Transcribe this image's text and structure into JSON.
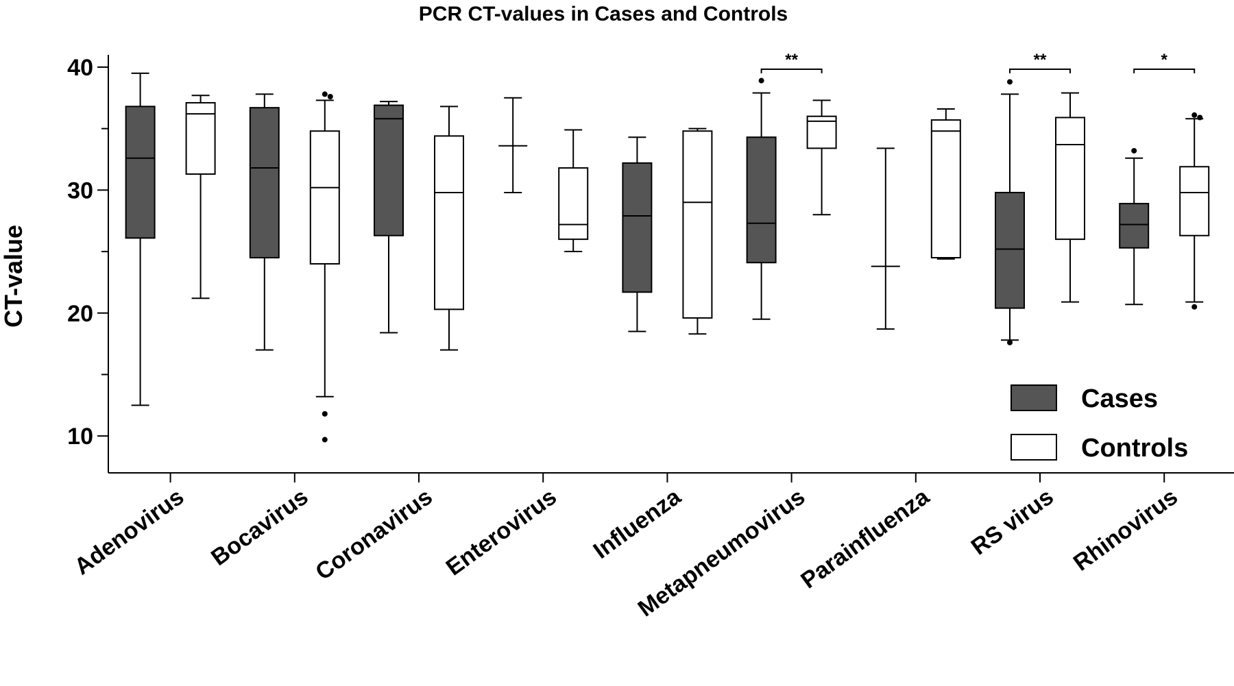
{
  "chart_data": {
    "type": "box",
    "title": "PCR CT-values in Cases and Controls",
    "ylabel": "CT-value",
    "xlabel": "",
    "ylim": [
      7,
      41
    ],
    "yticks": [
      10,
      20,
      30,
      40
    ],
    "grid": false,
    "legend_position": "bottom-right",
    "colors": {
      "Cases": "#555555",
      "Controls": "#ffffff",
      "line": "#000000"
    },
    "categories": [
      "Adenovirus",
      "Bocavirus",
      "Coronavirus",
      "Enterovirus",
      "Influenza",
      "Metapneumovirus",
      "Parainfluenza",
      "RS virus",
      "Rhinovirus"
    ],
    "series": [
      {
        "name": "Cases",
        "boxes": [
          {
            "whisker_low": 12.5,
            "q1": 26.1,
            "median": 32.6,
            "q3": 36.8,
            "whisker_high": 39.5,
            "outliers": []
          },
          {
            "whisker_low": 17.0,
            "q1": 24.5,
            "median": 31.8,
            "q3": 36.7,
            "whisker_high": 37.8,
            "outliers": []
          },
          {
            "whisker_low": 18.4,
            "q1": 26.3,
            "median": 35.8,
            "q3": 36.9,
            "whisker_high": 37.2,
            "outliers": []
          },
          {
            "whisker_low": 29.8,
            "q1": 33.6,
            "median": 33.6,
            "q3": 33.6,
            "whisker_high": 37.5,
            "outliers": []
          },
          {
            "whisker_low": 18.5,
            "q1": 21.7,
            "median": 27.9,
            "q3": 32.2,
            "whisker_high": 34.3,
            "outliers": []
          },
          {
            "whisker_low": 19.5,
            "q1": 24.1,
            "median": 27.3,
            "q3": 34.3,
            "whisker_high": 37.9,
            "outliers": [
              38.9
            ]
          },
          {
            "whisker_low": 18.7,
            "q1": 23.8,
            "median": 23.8,
            "q3": 23.8,
            "whisker_high": 33.4,
            "outliers": []
          },
          {
            "whisker_low": 17.8,
            "q1": 20.4,
            "median": 25.2,
            "q3": 29.8,
            "whisker_high": 37.8,
            "outliers": [
              38.8,
              17.6
            ]
          },
          {
            "whisker_low": 20.7,
            "q1": 25.3,
            "median": 27.2,
            "q3": 28.9,
            "whisker_high": 32.6,
            "outliers": [
              33.2
            ]
          }
        ]
      },
      {
        "name": "Controls",
        "boxes": [
          {
            "whisker_low": 21.2,
            "q1": 31.3,
            "median": 36.2,
            "q3": 37.1,
            "whisker_high": 37.7,
            "outliers": []
          },
          {
            "whisker_low": 13.2,
            "q1": 24.0,
            "median": 30.2,
            "q3": 34.8,
            "whisker_high": 37.3,
            "outliers": [
              37.8,
              37.6,
              11.8,
              9.7
            ]
          },
          {
            "whisker_low": 17.0,
            "q1": 20.3,
            "median": 29.8,
            "q3": 34.4,
            "whisker_high": 36.8,
            "outliers": []
          },
          {
            "whisker_low": 25.0,
            "q1": 26.0,
            "median": 27.2,
            "q3": 31.8,
            "whisker_high": 34.9,
            "outliers": []
          },
          {
            "whisker_low": 18.3,
            "q1": 19.6,
            "median": 29.0,
            "q3": 34.8,
            "whisker_high": 35.0,
            "outliers": []
          },
          {
            "whisker_low": 28.0,
            "q1": 33.4,
            "median": 35.6,
            "q3": 36.0,
            "whisker_high": 37.3,
            "outliers": []
          },
          {
            "whisker_low": 24.4,
            "q1": 24.5,
            "median": 34.8,
            "q3": 35.7,
            "whisker_high": 36.6,
            "outliers": []
          },
          {
            "whisker_low": 20.9,
            "q1": 26.0,
            "median": 33.7,
            "q3": 35.9,
            "whisker_high": 37.9,
            "outliers": []
          },
          {
            "whisker_low": 20.9,
            "q1": 26.3,
            "median": 29.8,
            "q3": 31.9,
            "whisker_high": 35.8,
            "outliers": [
              36.1,
              35.9,
              20.5
            ]
          }
        ]
      }
    ],
    "annotations": [
      {
        "category": "Metapneumovirus",
        "text": "**"
      },
      {
        "category": "RS virus",
        "text": "**"
      },
      {
        "category": "Rhinovirus",
        "text": "*"
      }
    ]
  }
}
